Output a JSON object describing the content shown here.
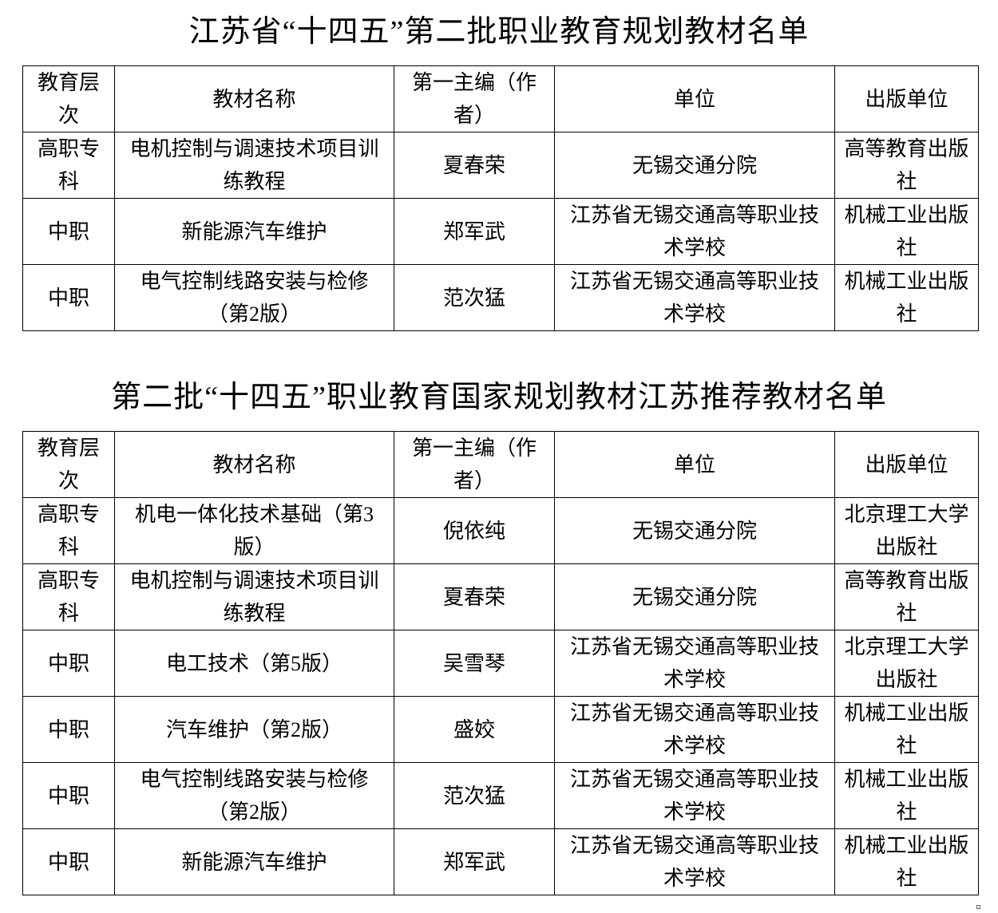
{
  "doc": {
    "title1": "江苏省“十四五”第二批职业教育规划教材名单",
    "title2": "第二批“十四五”职业教育国家规划教材江苏推荐教材名单",
    "headers": [
      "教育层次",
      "教材名称",
      "第一主编（作者）",
      "单位",
      "出版单位"
    ],
    "table1": [
      [
        "高职专科",
        "电机控制与调速技术项目训练教程",
        "夏春荣",
        "无锡交通分院",
        "高等教育出版社"
      ],
      [
        "中职",
        "新能源汽车维护",
        "郑军武",
        "江苏省无锡交通高等职业技术学校",
        "机械工业出版社"
      ],
      [
        "中职",
        "电气控制线路安装与检修（第2版）",
        "范次猛",
        "江苏省无锡交通高等职业技术学校",
        "机械工业出版社"
      ]
    ],
    "table2": [
      [
        "高职专科",
        "机电一体化技术基础（第3版）",
        "倪依纯",
        "无锡交通分院",
        "北京理工大学出版社"
      ],
      [
        "高职专科",
        "电机控制与调速技术项目训练教程",
        "夏春荣",
        "无锡交通分院",
        "高等教育出版社"
      ],
      [
        "中职",
        "电工技术（第5版）",
        "吴雪琴",
        "江苏省无锡交通高等职业技术学校",
        "北京理工大学出版社"
      ],
      [
        "中职",
        "汽车维护（第2版）",
        "盛姣",
        "江苏省无锡交通高等职业技术学校",
        "机械工业出版社"
      ],
      [
        "中职",
        "电气控制线路安装与检修（第2版）",
        "范次猛",
        "江苏省无锡交通高等职业技术学校",
        "机械工业出版社"
      ],
      [
        "中职",
        "新能源汽车维护",
        "郑军武",
        "江苏省无锡交通高等职业技术学校",
        "机械工业出版社"
      ]
    ]
  }
}
